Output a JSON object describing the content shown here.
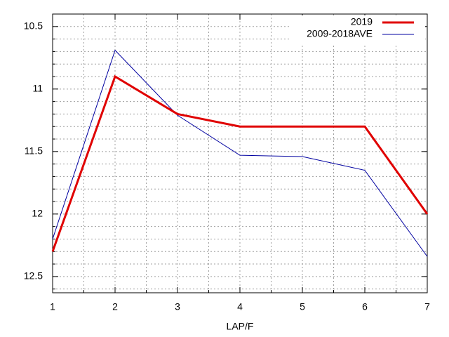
{
  "chart_data": {
    "type": "line",
    "x": [
      1,
      2,
      3,
      4,
      5,
      6,
      7
    ],
    "series": [
      {
        "name": "2019",
        "color": "#e00000",
        "width": 3,
        "values": [
          12.3,
          10.9,
          11.2,
          11.3,
          11.3,
          11.3,
          12.0
        ]
      },
      {
        "name": "2009-2018AVE",
        "color": "#0000a0",
        "width": 1,
        "values": [
          12.2,
          10.69,
          11.21,
          11.53,
          11.54,
          11.65,
          12.34
        ]
      }
    ],
    "xlabel": "LAP/F",
    "xlim": [
      1,
      7
    ],
    "xticks": [
      1,
      2,
      3,
      4,
      5,
      6,
      7
    ],
    "ylim": [
      10.4,
      12.63
    ],
    "y_inverted": true,
    "yticks": [
      10.5,
      11,
      11.5,
      12,
      12.5
    ],
    "minor_yticks": [
      10.6,
      10.7,
      10.8,
      10.9,
      11.1,
      11.2,
      11.3,
      11.4,
      11.6,
      11.7,
      11.8,
      11.9,
      12.1,
      12.2,
      12.3,
      12.4,
      12.6
    ],
    "minor_xticks": [
      1.5,
      2.5,
      3.5,
      4.5,
      5.5,
      6.5
    ],
    "grid": true,
    "legend": "top-right"
  }
}
